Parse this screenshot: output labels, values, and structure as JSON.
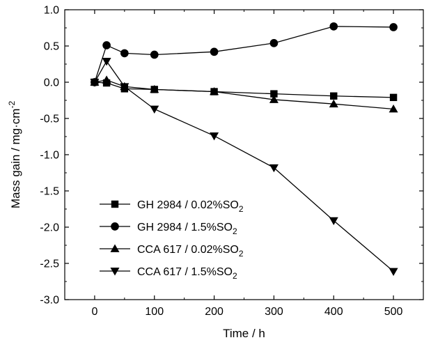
{
  "chart_data": {
    "type": "line",
    "xlabel": "Time / h",
    "ylabel_main": "Mass gain / mg·cm",
    "ylabel_sup": "-2",
    "xlim": [
      -50,
      550
    ],
    "ylim": [
      -3.0,
      1.0
    ],
    "xticks": [
      0,
      100,
      200,
      300,
      400,
      500
    ],
    "xtick_labels": [
      "0",
      "100",
      "200",
      "300",
      "400",
      "500"
    ],
    "yticks": [
      1.0,
      0.5,
      0.0,
      -0.5,
      -1.0,
      -1.5,
      -2.0,
      -2.5,
      -3.0
    ],
    "ytick_labels": [
      "1.0",
      "0.5",
      "0.0",
      "-0.5",
      "-1.0",
      "-1.5",
      "-2.0",
      "-2.5",
      "-3.0"
    ],
    "grid": false,
    "legend_position": "bottom-left",
    "series": [
      {
        "name_main": "GH 2984 / 0.02%SO",
        "name_sub": "2",
        "marker": "square",
        "x": [
          0,
          20,
          50,
          100,
          200,
          300,
          400,
          500
        ],
        "y": [
          0.0,
          -0.01,
          -0.09,
          -0.1,
          -0.13,
          -0.16,
          -0.19,
          -0.21
        ]
      },
      {
        "name_main": "GH 2984 / 1.5%SO",
        "name_sub": "2",
        "marker": "circle",
        "x": [
          0,
          20,
          50,
          100,
          200,
          300,
          400,
          500
        ],
        "y": [
          0.0,
          0.51,
          0.4,
          0.38,
          0.42,
          0.54,
          0.77,
          0.76
        ]
      },
      {
        "name_main": "CCA 617 / 0.02%SO",
        "name_sub": "2",
        "marker": "triangle-up",
        "x": [
          0,
          20,
          50,
          100,
          200,
          300,
          400,
          500
        ],
        "y": [
          0.0,
          0.03,
          -0.06,
          -0.1,
          -0.13,
          -0.24,
          -0.3,
          -0.37
        ]
      },
      {
        "name_main": "CCA 617 / 1.5%SO",
        "name_sub": "2",
        "marker": "triangle-down",
        "x": [
          0,
          20,
          50,
          100,
          200,
          300,
          400,
          500
        ],
        "y": [
          0.0,
          0.29,
          -0.06,
          -0.37,
          -0.74,
          -1.18,
          -1.91,
          -2.61
        ]
      }
    ]
  }
}
